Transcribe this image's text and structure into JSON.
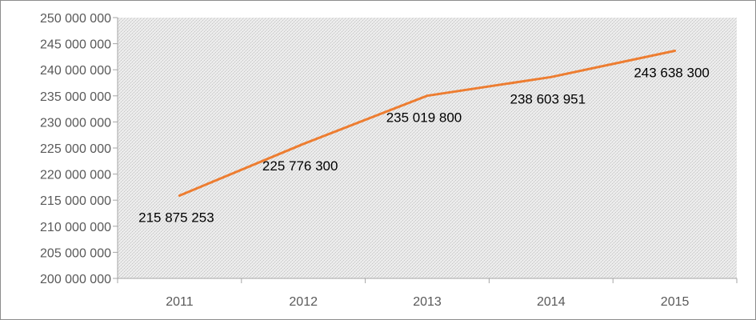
{
  "chart_data": {
    "type": "line",
    "title": "",
    "xlabel": "",
    "ylabel": "",
    "categories": [
      "2011",
      "2012",
      "2013",
      "2014",
      "2015"
    ],
    "series": [
      {
        "values": [
          215875253,
          225776300,
          235019800,
          238603951,
          243638300
        ],
        "data_labels": [
          "215 875 253",
          "225 776 300",
          "235 019 800",
          "238 603 951",
          "243 638 300"
        ],
        "color": "#ed7d31"
      }
    ],
    "ylim": [
      200000000,
      250000000
    ],
    "y_ticks": [
      200000000,
      205000000,
      210000000,
      215000000,
      220000000,
      225000000,
      230000000,
      235000000,
      240000000,
      245000000,
      250000000
    ],
    "y_tick_labels": [
      "200 000 000",
      "205 000 000",
      "210 000 000",
      "215 000 000",
      "220 000 000",
      "225 000 000",
      "230 000 000",
      "235 000 000",
      "240 000 000",
      "245 000 000",
      "250 000 000"
    ],
    "grid": false,
    "legend": "none",
    "plot_background": "dotted light gray pattern",
    "colors": {
      "line": "#ed7d31",
      "axis": "#a6a6a6",
      "tick_text": "#595959",
      "label_text": "#000000"
    }
  }
}
